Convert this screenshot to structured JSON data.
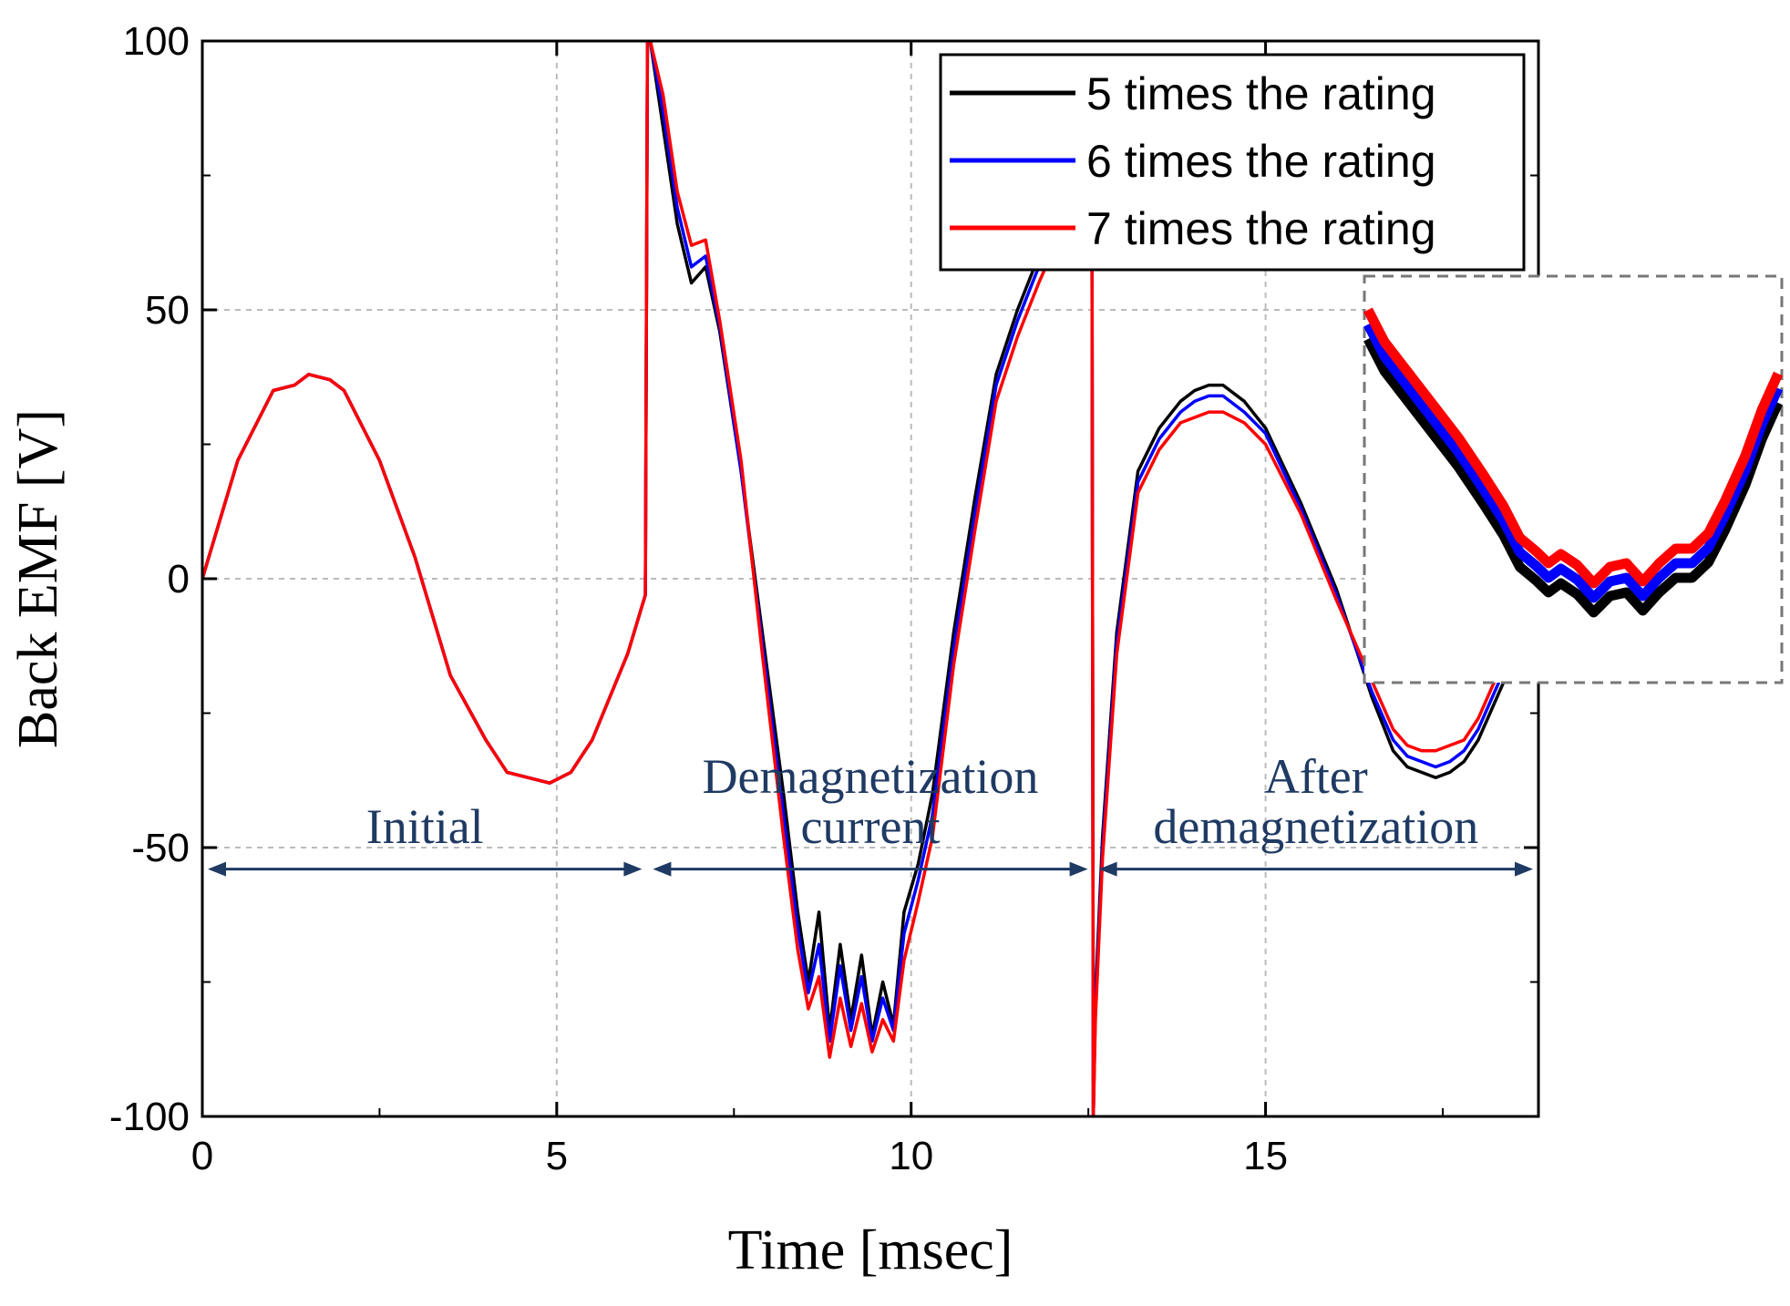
{
  "chart_data": {
    "type": "line",
    "xlabel": "Time [msec]",
    "ylabel": "Back EMF [V]",
    "xlim": [
      0,
      18.85
    ],
    "ylim": [
      -100,
      100
    ],
    "x_ticks": [
      0,
      5,
      10,
      15
    ],
    "y_ticks": [
      100,
      50,
      0,
      -50,
      -100
    ],
    "grid": true,
    "legend_position": "top-right",
    "legend": [
      {
        "label": "5 times the rating",
        "color": "#000000"
      },
      {
        "label": "6 times the rating",
        "color": "#0000ff"
      },
      {
        "label": "7 times the rating",
        "color": "#ff0000"
      }
    ],
    "annotations": {
      "initial": "Initial",
      "demag_line1": "Demagnetization",
      "demag_line2": "current",
      "after_line1": "After",
      "after_line2": "demagnetization"
    },
    "regions": [
      {
        "from": 0,
        "to": 6.28
      },
      {
        "from": 6.28,
        "to": 12.57
      },
      {
        "from": 12.57,
        "to": 18.85
      }
    ],
    "series": [
      {
        "name": "5 times the rating",
        "color": "#000000",
        "x": [
          0,
          0.5,
          1,
          1.3,
          1.5,
          1.8,
          2,
          2.5,
          3,
          3.5,
          4,
          4.3,
          4.6,
          4.9,
          5.2,
          5.5,
          6,
          6.25,
          6.28,
          6.32,
          6.5,
          6.7,
          6.9,
          7.1,
          7.3,
          7.6,
          7.9,
          8.2,
          8.4,
          8.55,
          8.7,
          8.85,
          9,
          9.15,
          9.3,
          9.45,
          9.6,
          9.75,
          9.9,
          10.1,
          10.3,
          10.6,
          10.9,
          11.2,
          11.5,
          11.8,
          12.1,
          12.4,
          12.55,
          12.57,
          12.6,
          12.7,
          12.9,
          13.2,
          13.5,
          13.8,
          14.0,
          14.2,
          14.4,
          14.7,
          15.0,
          15.5,
          16.0,
          16.5,
          16.8,
          17.0,
          17.2,
          17.4,
          17.6,
          17.8,
          18.0,
          18.4,
          18.85
        ],
        "y": [
          0,
          22,
          35,
          36,
          38,
          37,
          35,
          22,
          4,
          -18,
          -30,
          -36,
          -37,
          -38,
          -36,
          -30,
          -14,
          -3,
          100,
          100,
          84,
          66,
          55,
          58,
          46,
          20,
          -10,
          -40,
          -62,
          -75,
          -62,
          -84,
          -68,
          -82,
          -70,
          -85,
          -75,
          -83,
          -62,
          -53,
          -40,
          -10,
          15,
          38,
          50,
          60,
          68,
          75,
          80,
          -100,
          -78,
          -48,
          -10,
          20,
          28,
          33,
          35,
          36,
          36,
          33,
          28,
          14,
          -2,
          -22,
          -32,
          -35,
          -36,
          -37,
          -36,
          -34,
          -30,
          -18,
          -4
        ]
      },
      {
        "name": "6 times the rating",
        "color": "#0000ff",
        "x": [
          0,
          0.5,
          1,
          1.3,
          1.5,
          1.8,
          2,
          2.5,
          3,
          3.5,
          4,
          4.3,
          4.6,
          4.9,
          5.2,
          5.5,
          6,
          6.25,
          6.28,
          6.32,
          6.5,
          6.7,
          6.9,
          7.1,
          7.3,
          7.6,
          7.9,
          8.2,
          8.4,
          8.55,
          8.7,
          8.85,
          9,
          9.15,
          9.3,
          9.45,
          9.6,
          9.75,
          9.9,
          10.1,
          10.3,
          10.6,
          10.9,
          11.2,
          11.5,
          11.8,
          12.1,
          12.4,
          12.55,
          12.57,
          12.6,
          12.7,
          12.9,
          13.2,
          13.5,
          13.8,
          14.0,
          14.2,
          14.4,
          14.7,
          15.0,
          15.5,
          16.0,
          16.5,
          16.8,
          17.0,
          17.2,
          17.4,
          17.6,
          17.8,
          18.0,
          18.4,
          18.85
        ],
        "y": [
          0,
          22,
          35,
          36,
          38,
          37,
          35,
          22,
          4,
          -18,
          -30,
          -36,
          -37,
          -38,
          -36,
          -30,
          -14,
          -3,
          100,
          100,
          87,
          69,
          58,
          60,
          47,
          20,
          -12,
          -44,
          -65,
          -77,
          -68,
          -86,
          -72,
          -84,
          -74,
          -86,
          -78,
          -84,
          -66,
          -56,
          -44,
          -13,
          12,
          36,
          48,
          58,
          66,
          73,
          79,
          -100,
          -80,
          -50,
          -12,
          18,
          26,
          31,
          33,
          34,
          34,
          31,
          27,
          13,
          -3,
          -21,
          -30,
          -33,
          -34,
          -35,
          -34,
          -32,
          -28,
          -16,
          -3
        ]
      },
      {
        "name": "7 times the rating",
        "color": "#ff0000",
        "x": [
          0,
          0.5,
          1,
          1.3,
          1.5,
          1.8,
          2,
          2.5,
          3,
          3.5,
          4,
          4.3,
          4.6,
          4.9,
          5.2,
          5.5,
          6,
          6.25,
          6.28,
          6.32,
          6.5,
          6.7,
          6.9,
          7.1,
          7.3,
          7.6,
          7.9,
          8.2,
          8.4,
          8.55,
          8.7,
          8.85,
          9,
          9.15,
          9.3,
          9.45,
          9.6,
          9.75,
          9.9,
          10.1,
          10.3,
          10.6,
          10.9,
          11.2,
          11.5,
          11.8,
          12.1,
          12.4,
          12.55,
          12.57,
          12.6,
          12.7,
          12.9,
          13.2,
          13.5,
          13.8,
          14.0,
          14.2,
          14.4,
          14.7,
          15.0,
          15.5,
          16.0,
          16.5,
          16.8,
          17.0,
          17.2,
          17.4,
          17.6,
          17.8,
          18.0,
          18.4,
          18.85
        ],
        "y": [
          0,
          22,
          35,
          36,
          38,
          37,
          35,
          22,
          4,
          -18,
          -30,
          -36,
          -37,
          -38,
          -36,
          -30,
          -14,
          -3,
          100,
          100,
          90,
          72,
          62,
          63,
          48,
          22,
          -14,
          -48,
          -69,
          -80,
          -74,
          -89,
          -78,
          -87,
          -79,
          -88,
          -82,
          -86,
          -71,
          -60,
          -48,
          -16,
          9,
          33,
          45,
          55,
          64,
          71,
          78,
          -100,
          -82,
          -52,
          -14,
          16,
          24,
          29,
          30,
          31,
          31,
          29,
          25,
          12,
          -4,
          -19,
          -28,
          -31,
          -32,
          -32,
          -31,
          -30,
          -26,
          -14,
          -2
        ]
      }
    ],
    "inset": {
      "description_note": "",
      "black_shift": -10,
      "blue_shift": -6,
      "red_shift": 0
    }
  }
}
